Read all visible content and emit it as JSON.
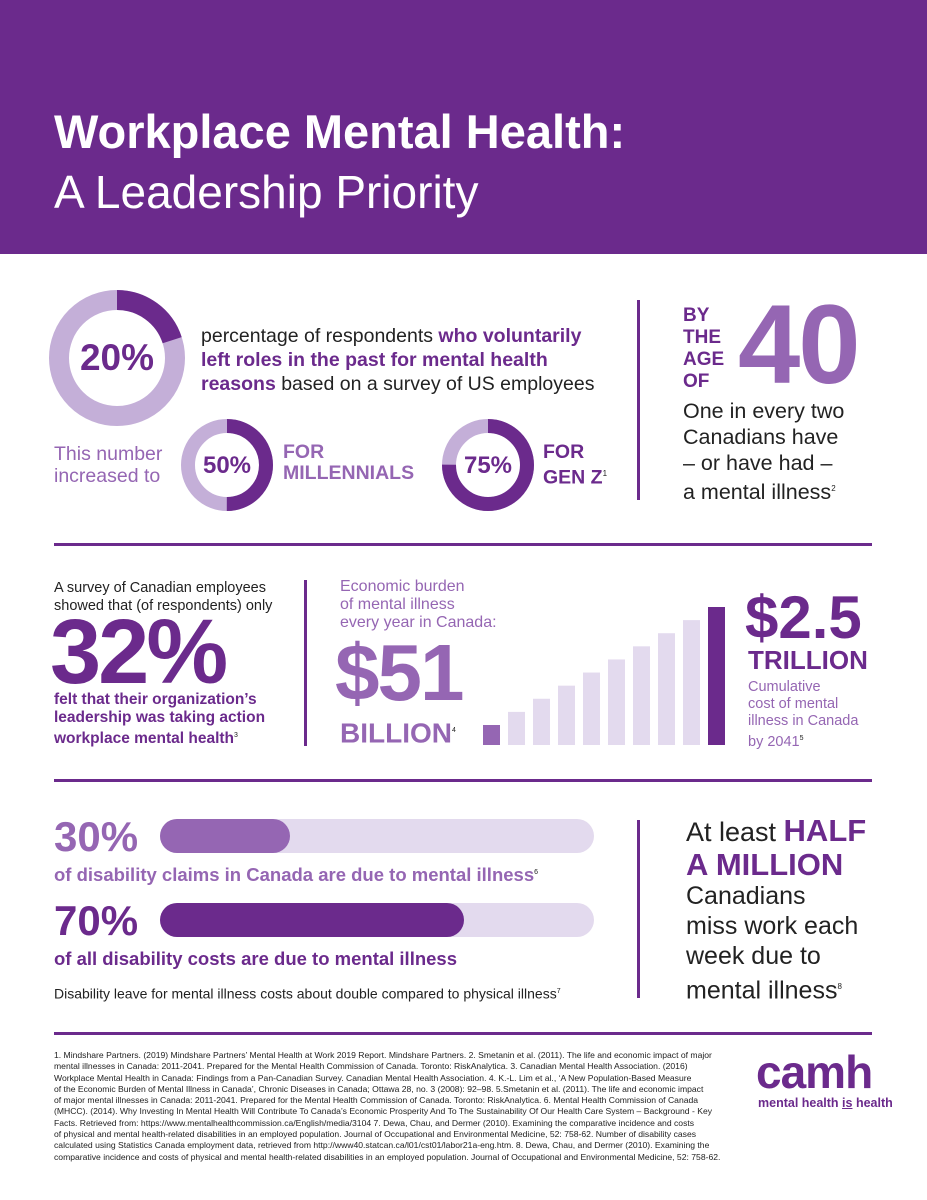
{
  "header": {
    "title_line1": "Workplace Mental Health:",
    "title_line2": "A Leadership Priority"
  },
  "section1": {
    "main_percent": "20%",
    "main_percent_value": 0.2,
    "desc_line1_a": "percentage of respondents ",
    "desc_line1_b": "who voluntarily",
    "desc_line2": "left roles in the past for mental health",
    "desc_line3_a": "reasons",
    "desc_line3_b": " based on a survey of US employees",
    "increased_line1": "This number",
    "increased_line2": "increased to",
    "millennials_percent": "50%",
    "millennials_value": 0.5,
    "millennials_line1": "FOR",
    "millennials_line2": "MILLENNIALS",
    "genz_percent": "75%",
    "genz_value": 0.75,
    "genz_line1": "FOR",
    "genz_line2": "GEN Z",
    "genz_sup": "1"
  },
  "age40": {
    "by": "BY",
    "the": "THE",
    "age": "AGE",
    "of": "OF",
    "number": "40",
    "line1": "One in every two",
    "line2": "Canadians have",
    "line3": "– or have had –",
    "line4": "a mental illness",
    "sup": "2"
  },
  "survey": {
    "line1": "A survey of Canadian employees",
    "line2": "showed that (of respondents) only",
    "percent": "32%",
    "desc1": "felt that their organization’s",
    "desc2": "leadership was taking action",
    "desc3": "workplace mental health",
    "sup": "3"
  },
  "burden": {
    "line1": "Economic burden",
    "line2": "of mental illness",
    "line3": "every year in Canada:",
    "amount": "$51",
    "unit": "BILLION",
    "sup": "4",
    "bars": [
      1,
      2,
      3,
      4,
      5,
      6,
      7,
      8,
      9,
      10
    ],
    "cumulative_amount": "$2.5",
    "cumulative_unit": "TRILLION",
    "cumulative_line1": "Cumulative",
    "cumulative_line2": "cost of mental",
    "cumulative_line3": "illness in Canada",
    "cumulative_line4": "by 2041",
    "cumulative_sup": "5"
  },
  "disability": {
    "claims_percent": "30%",
    "claims_value": 0.3,
    "claims_text": "of disability claims in Canada are due to mental illness",
    "claims_sup": "6",
    "costs_percent": "70%",
    "costs_value": 0.7,
    "costs_text": "of all disability costs are due to mental illness",
    "leave_text": "Disability leave for mental illness costs about double compared to physical illness",
    "leave_sup": "7"
  },
  "halfmillion": {
    "line1_a": "At least ",
    "line1_b": "HALF",
    "line2": "A MILLION",
    "line3": "Canadians",
    "line4": "miss work each",
    "line5": "week due to",
    "line6": "mental illness",
    "sup": "8"
  },
  "references": [
    "1. Mindshare Partners. (2019) Mindshare Partners’ Mental Health at Work 2019 Report. Mindshare Partners.     2. Smetanin et al. (2011). The life and economic impact of major",
    "mental illnesses in Canada: 2011-2041. Prepared for the Mental Health Commission of Canada. Toronto: RiskAnalytica.     3. Canadian Mental Health Association. (2016)",
    "Workplace Mental Health in Canada: Findings from a Pan-Canadian Survey. Canadian Mental Health Association.     4. K.-L. Lim et al., ‘A New Population-Based Measure",
    "of the Economic Burden of Mental Illness in Canada’, Chronic Diseases in Canada; Ottawa 28, no. 3 (2008): 92–98.     5.Smetanin et al. (2011). The life and economic impact",
    "of major mental illnesses in Canada: 2011-2041. Prepared for the Mental Health Commission of Canada. Toronto: RiskAnalytica.     6. Mental Health Commission of Canada",
    "(MHCC). (2014). Why Investing In Mental Health Will Contribute To Canada’s Economic Prosperity And To The Sustainability Of Our Health Care System – Background - Key",
    "Facts. Retrieved from: https://www.mentalhealthcommission.ca/English/media/3104 7. Dewa, Chau, and Dermer (2010). Examining the comparative incidence and costs",
    "of physical and mental health-related disabilities in an employed population. Journal of Occupational and Environmental Medicine, 52: 758-62. Number of disability cases",
    "calculated using Statistics Canada employment data, retrieved from http://www40.statcan.ca/l01/cst01/labor21a-eng.htm.     8. Dewa, Chau, and Dermer (2010). Examining the",
    "comparative incidence and costs of physical and mental health-related disabilities in an employed population. Journal of Occupational and Environmental Medicine, 52: 758-62."
  ],
  "logo": {
    "name": "camh",
    "tagline_a": "mental health ",
    "tagline_b": "is",
    "tagline_c": " health"
  },
  "colors": {
    "primary": "#6b2a8c",
    "light": "#c4afd8",
    "lighter": "#e3daee",
    "mid": "#9566b3"
  }
}
